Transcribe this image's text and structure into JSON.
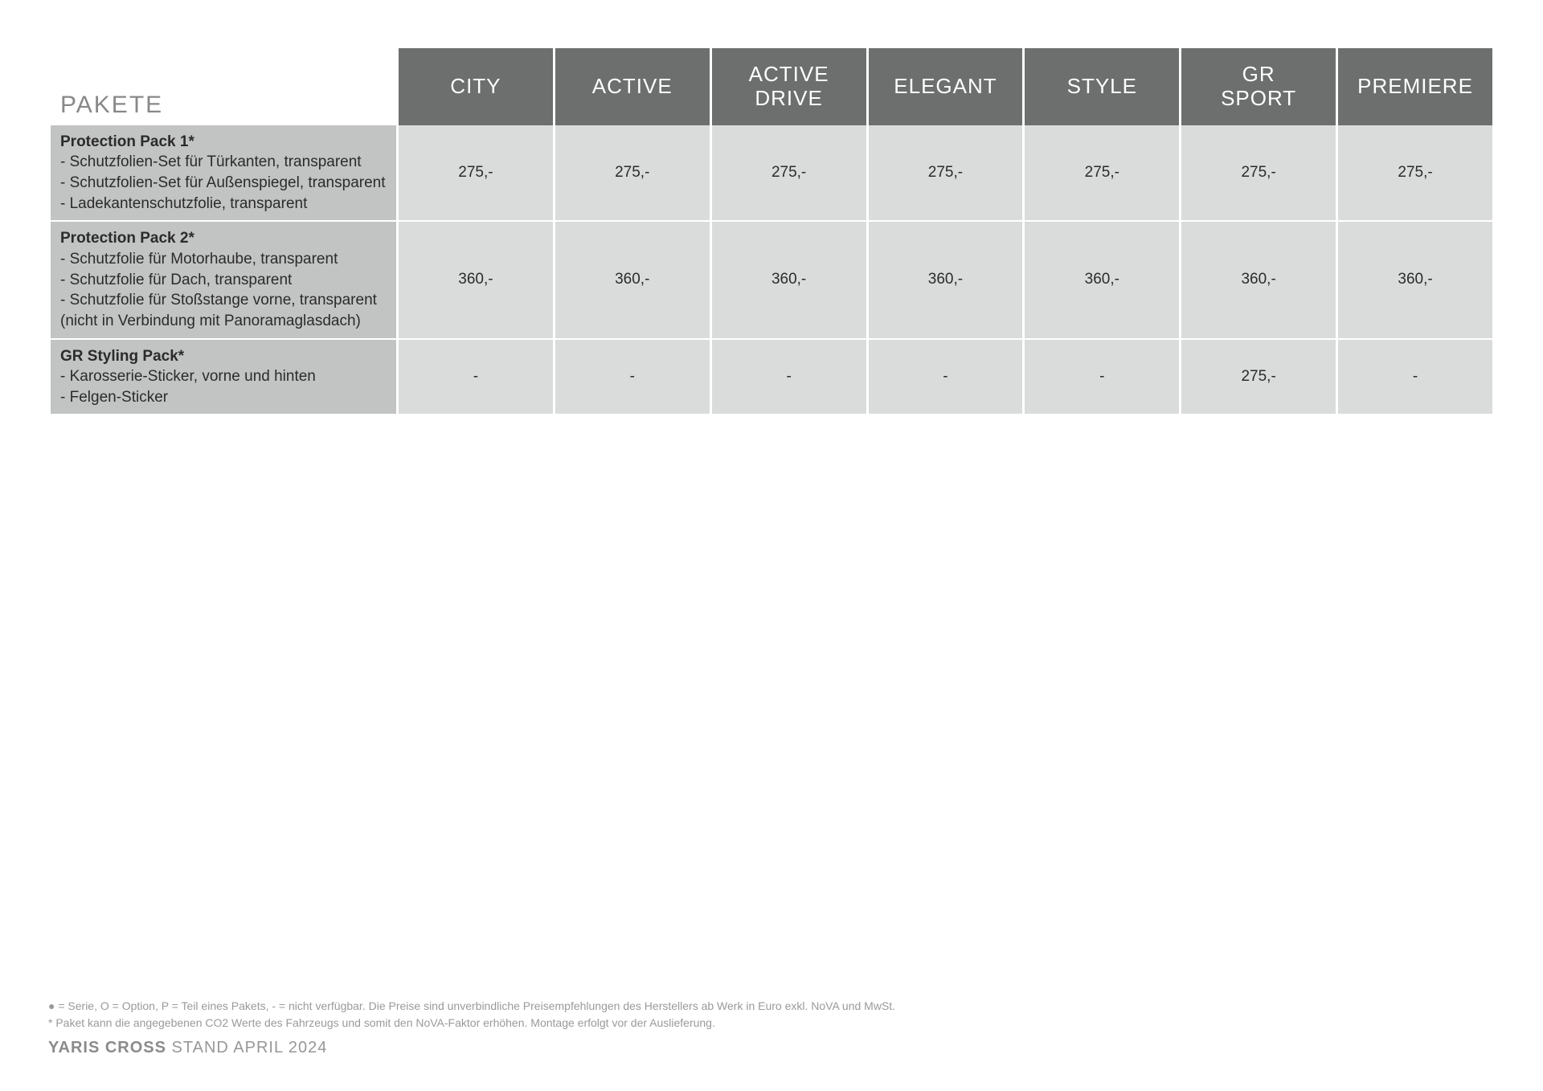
{
  "table": {
    "title": "PAKETE",
    "columns": [
      "CITY",
      "ACTIVE",
      "ACTIVE DRIVE",
      "ELEGANT",
      "STYLE",
      "GR SPORT",
      "PREMIERE"
    ],
    "rows": [
      {
        "title": "Protection Pack 1*",
        "lines": [
          "- Schutzfolien-Set für Türkanten, transparent",
          "- Schutzfolien-Set für Außenspiegel, transparent",
          "- Ladekantenschutzfolie, transparent"
        ],
        "prices": [
          "275,-",
          "275,-",
          "275,-",
          "275,-",
          "275,-",
          "275,-",
          "275,-"
        ]
      },
      {
        "title": "Protection Pack 2*",
        "lines": [
          "- Schutzfolie für Motorhaube, transparent",
          "- Schutzfolie für Dach, transparent",
          "- Schutzfolie für Stoßstange vorne, transparent",
          "(nicht in Verbindung mit Panoramaglasdach)"
        ],
        "prices": [
          "360,-",
          "360,-",
          "360,-",
          "360,-",
          "360,-",
          "360,-",
          "360,-"
        ]
      },
      {
        "title": "GR Styling Pack*",
        "lines": [
          "- Karosserie-Sticker, vorne und hinten",
          "- Felgen-Sticker"
        ],
        "prices": [
          "-",
          "-",
          "-",
          "-",
          "-",
          "275,-",
          "-"
        ]
      }
    ]
  },
  "footer": {
    "note1": "● = Serie, O = Option, P = Teil eines Pakets, - = nicht verfügbar. Die Preise sind unverbindliche Preisempfehlungen des Herstellers ab Werk in Euro exkl. NoVA und MwSt.",
    "note2": "* Paket kann die angegebenen CO2 Werte des Fahrzeugs und somit den NoVA-Faktor erhöhen. Montage erfolgt vor der Auslieferung.",
    "brand_bold": "YARIS CROSS",
    "brand_rest": " STAND APRIL 2024"
  },
  "style": {
    "header_bg": "#6d6e6e",
    "header_fg": "#ffffff",
    "rowlabel_bg": "#c2c3c3",
    "price_bg": "#dadbdb",
    "title_color": "#888888",
    "text_color": "#2b2b2b",
    "footer_color": "#9a9a9a"
  }
}
